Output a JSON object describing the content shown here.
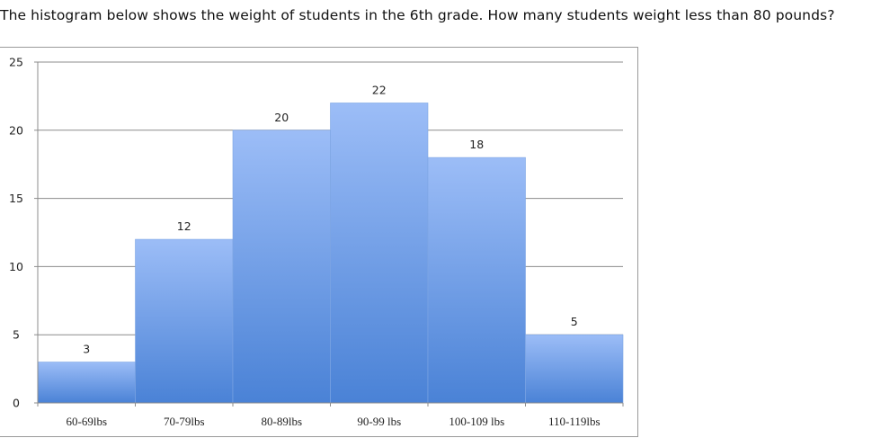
{
  "question": {
    "text": "The histogram below shows the weight of students in the 6th grade. How many students weight less than 80 pounds?"
  },
  "chart_data": {
    "type": "bar",
    "title": "",
    "xlabel": "",
    "ylabel": "",
    "categories": [
      "60-69lbs",
      "70-79lbs",
      "80-89lbs",
      "90-99  lbs",
      "100-109 lbs",
      "110-119lbs"
    ],
    "values": [
      3,
      12,
      20,
      22,
      18,
      5
    ],
    "ylim": [
      0,
      25
    ],
    "yticks": [
      0,
      5,
      10,
      15,
      20,
      25
    ],
    "grid": true,
    "legend": "none",
    "bar_color_top": "#9cbdf7",
    "bar_color_bottom": "#4a82d6",
    "gridline_color": "#8c8c8c"
  }
}
